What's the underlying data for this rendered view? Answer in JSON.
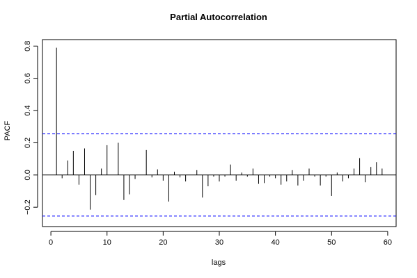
{
  "chart_data": {
    "type": "bar",
    "title": "Partial Autocorrelation",
    "xlabel": "lags",
    "ylabel": "PACF",
    "xlim": [
      -1.5,
      61.5
    ],
    "ylim": [
      -0.32,
      0.84
    ],
    "x_ticks": [
      0,
      10,
      20,
      30,
      40,
      50,
      60
    ],
    "y_ticks": [
      -0.2,
      0.0,
      0.2,
      0.4,
      0.6,
      0.8
    ],
    "x_tick_labels": [
      "0",
      "10",
      "20",
      "30",
      "40",
      "50",
      "60"
    ],
    "y_tick_labels": [
      "−0.2",
      "0.0",
      "0.2",
      "0.4",
      "0.6",
      "0.8"
    ],
    "confidence_bound": 0.255,
    "confidence_line_color": "#0000ff",
    "series": [
      {
        "lags": [
          1,
          2,
          3,
          4,
          5,
          6,
          7,
          8,
          9,
          10,
          11,
          12,
          13,
          14,
          15,
          16,
          17,
          18,
          19,
          20,
          21,
          22,
          23,
          24,
          25,
          26,
          27,
          28,
          29,
          30,
          31,
          32,
          33,
          34,
          35,
          36,
          37,
          38,
          39,
          40,
          41,
          42,
          43,
          44,
          45,
          46,
          47,
          48,
          49,
          50,
          51,
          52,
          53,
          54,
          55,
          56,
          57,
          58,
          59
        ],
        "values": [
          0.79,
          -0.02,
          0.09,
          0.15,
          -0.06,
          0.165,
          -0.215,
          -0.125,
          0.04,
          0.185,
          0.0,
          0.2,
          -0.155,
          -0.12,
          -0.025,
          0.0,
          0.155,
          -0.015,
          0.035,
          -0.035,
          -0.165,
          0.02,
          -0.015,
          -0.04,
          0.0,
          0.03,
          -0.14,
          -0.07,
          -0.01,
          -0.04,
          -0.01,
          0.065,
          -0.035,
          0.015,
          -0.01,
          0.04,
          -0.055,
          -0.05,
          -0.01,
          -0.02,
          -0.06,
          -0.04,
          0.03,
          -0.065,
          -0.035,
          0.04,
          -0.01,
          -0.065,
          -0.01,
          -0.13,
          0.015,
          -0.04,
          -0.02,
          0.04,
          0.105,
          -0.045,
          0.05,
          0.08,
          0.04
        ]
      }
    ]
  }
}
